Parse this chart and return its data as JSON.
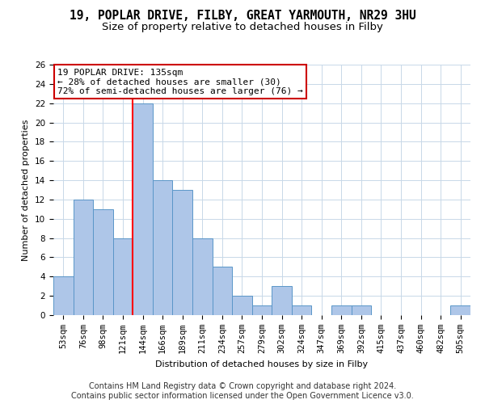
{
  "title": "19, POPLAR DRIVE, FILBY, GREAT YARMOUTH, NR29 3HU",
  "subtitle": "Size of property relative to detached houses in Filby",
  "xlabel": "Distribution of detached houses by size in Filby",
  "ylabel": "Number of detached properties",
  "footer_line1": "Contains HM Land Registry data © Crown copyright and database right 2024.",
  "footer_line2": "Contains public sector information licensed under the Open Government Licence v3.0.",
  "annotation_line1": "19 POPLAR DRIVE: 135sqm",
  "annotation_line2": "← 28% of detached houses are smaller (30)",
  "annotation_line3": "72% of semi-detached houses are larger (76) →",
  "categories": [
    "53sqm",
    "76sqm",
    "98sqm",
    "121sqm",
    "144sqm",
    "166sqm",
    "189sqm",
    "211sqm",
    "234sqm",
    "257sqm",
    "279sqm",
    "302sqm",
    "324sqm",
    "347sqm",
    "369sqm",
    "392sqm",
    "415sqm",
    "437sqm",
    "460sqm",
    "482sqm",
    "505sqm"
  ],
  "values": [
    4,
    12,
    11,
    8,
    22,
    14,
    13,
    8,
    5,
    2,
    1,
    3,
    1,
    0,
    1,
    1,
    0,
    0,
    0,
    0,
    1
  ],
  "bar_color": "#aec6e8",
  "bar_edge_color": "#5a96c8",
  "red_line_x": 3.5,
  "ylim": [
    0,
    26
  ],
  "yticks": [
    0,
    2,
    4,
    6,
    8,
    10,
    12,
    14,
    16,
    18,
    20,
    22,
    24,
    26
  ],
  "bg_color": "#ffffff",
  "grid_color": "#c8d8e8",
  "annotation_box_color": "#ffffff",
  "annotation_box_edge": "#cc0000",
  "title_fontsize": 10.5,
  "subtitle_fontsize": 9.5,
  "footer_fontsize": 7.0,
  "axis_fontsize": 8.0,
  "tick_fontsize": 7.5,
  "annot_fontsize": 8.0
}
